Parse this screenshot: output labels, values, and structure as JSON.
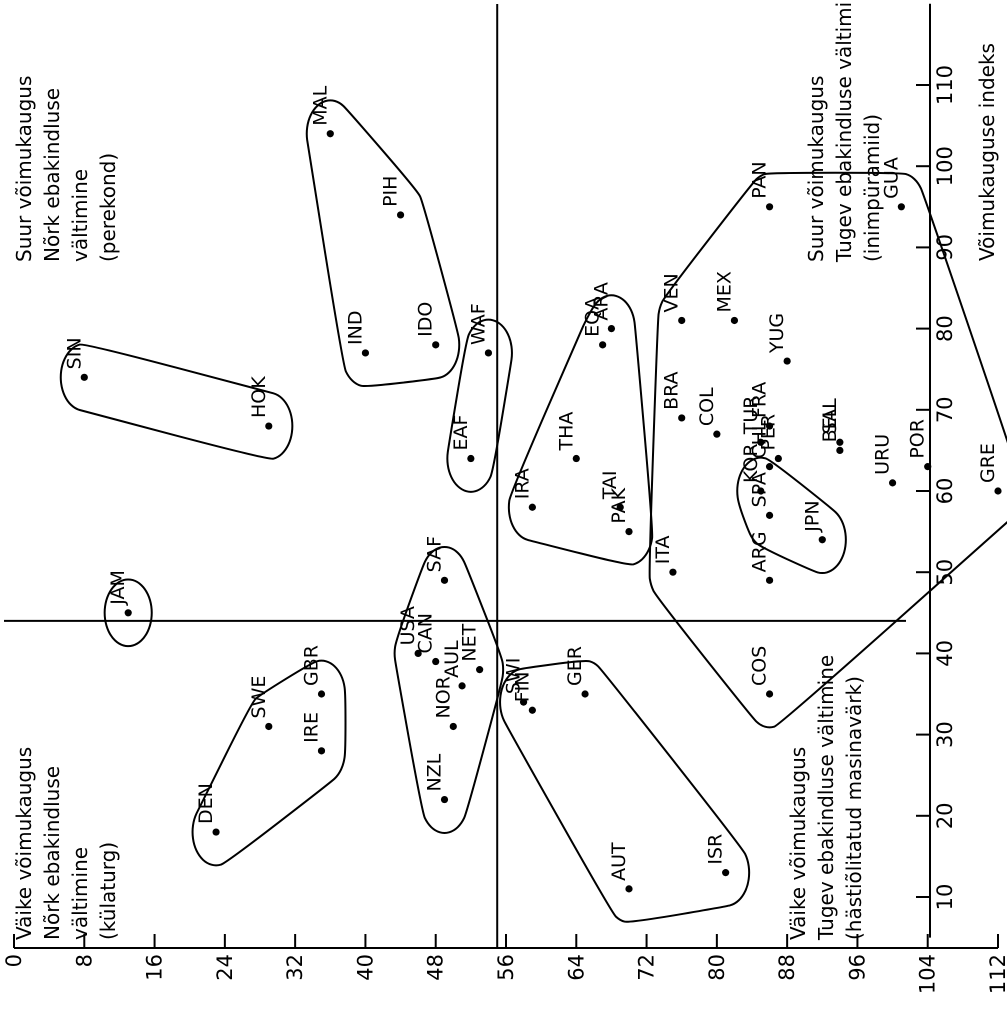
{
  "chart_data": {
    "type": "scatter",
    "x_axis": {
      "label": "Võimukauguse indeks",
      "range": [
        5,
        120
      ],
      "ticks": [
        "10",
        "20",
        "30",
        "40",
        "50",
        "60",
        "70",
        "80",
        "90",
        "100",
        "110"
      ]
    },
    "y_axis": {
      "label": "",
      "range": [
        0,
        112
      ],
      "ticks": [
        "0",
        "8",
        "16",
        "24",
        "32",
        "40",
        "48",
        "56",
        "64",
        "72",
        "80",
        "88",
        "96",
        "104",
        "112"
      ]
    },
    "dividers": {
      "x": 44,
      "y": 55
    },
    "quadrant_labels": [
      {
        "lines": [
          "Väike võimukaugus",
          "Nõrk ebakindluse",
          "vältimine",
          "(külaturg)"
        ]
      },
      {
        "lines": [
          "Suur võimukaugus",
          "Nõrk ebakindluse",
          "vältimine",
          "(perekond)"
        ]
      },
      {
        "lines": [
          "Väike võimukaugus",
          "Tugev ebakindluse vältimine",
          "(hästiõlitatud masinavärk)"
        ]
      },
      {
        "lines": [
          "Suur võimukaugus",
          "Tugev ebakindluse vältimine",
          "(inimpüramiid)"
        ]
      }
    ],
    "points": [
      {
        "label": "DEN",
        "x": 18,
        "y": 23
      },
      {
        "label": "SWE",
        "x": 31,
        "y": 29
      },
      {
        "label": "IRE",
        "x": 28,
        "y": 35
      },
      {
        "label": "GBR",
        "x": 35,
        "y": 35
      },
      {
        "label": "JAM",
        "x": 45,
        "y": 13
      },
      {
        "label": "SIN",
        "x": 74,
        "y": 8
      },
      {
        "label": "HOK",
        "x": 68,
        "y": 29
      },
      {
        "label": "NZL",
        "x": 22,
        "y": 49
      },
      {
        "label": "NOR",
        "x": 31,
        "y": 50
      },
      {
        "label": "AUL",
        "x": 36,
        "y": 51
      },
      {
        "label": "USA",
        "x": 40,
        "y": 46
      },
      {
        "label": "CAN",
        "x": 39,
        "y": 48
      },
      {
        "label": "NET",
        "x": 38,
        "y": 53
      },
      {
        "label": "SAF",
        "x": 49,
        "y": 49
      },
      {
        "label": "AUT",
        "x": 11,
        "y": 70
      },
      {
        "label": "ISR",
        "x": 13,
        "y": 81
      },
      {
        "label": "SWI",
        "x": 34,
        "y": 58
      },
      {
        "label": "FIN",
        "x": 33,
        "y": 59
      },
      {
        "label": "GER",
        "x": 35,
        "y": 65
      },
      {
        "label": "COS",
        "x": 35,
        "y": 86
      },
      {
        "label": "EAF",
        "x": 64,
        "y": 52
      },
      {
        "label": "WAF",
        "x": 77,
        "y": 54
      },
      {
        "label": "IND",
        "x": 77,
        "y": 40
      },
      {
        "label": "IDO",
        "x": 78,
        "y": 48
      },
      {
        "label": "PIH",
        "x": 94,
        "y": 44
      },
      {
        "label": "MAL",
        "x": 104,
        "y": 36
      },
      {
        "label": "IRA",
        "x": 58,
        "y": 59
      },
      {
        "label": "THA",
        "x": 64,
        "y": 64
      },
      {
        "label": "PAK",
        "x": 55,
        "y": 70
      },
      {
        "label": "TAI",
        "x": 58,
        "y": 69
      },
      {
        "label": "EQA",
        "x": 78,
        "y": 67
      },
      {
        "label": "ARA",
        "x": 80,
        "y": 68
      },
      {
        "label": "ITA",
        "x": 50,
        "y": 75
      },
      {
        "label": "BRA",
        "x": 69,
        "y": 76
      },
      {
        "label": "VEN",
        "x": 81,
        "y": 76
      },
      {
        "label": "COL",
        "x": 67,
        "y": 80
      },
      {
        "label": "TUR",
        "x": 66,
        "y": 85
      },
      {
        "label": "FRA",
        "x": 68,
        "y": 86
      },
      {
        "label": "MEX",
        "x": 81,
        "y": 82
      },
      {
        "label": "YUG",
        "x": 76,
        "y": 88
      },
      {
        "label": "PAN",
        "x": 95,
        "y": 86
      },
      {
        "label": "PER",
        "x": 64,
        "y": 87
      },
      {
        "label": "CHL",
        "x": 63,
        "y": 86
      },
      {
        "label": "SAL",
        "x": 66,
        "y": 94
      },
      {
        "label": "BEL",
        "x": 65,
        "y": 94
      },
      {
        "label": "KOR",
        "x": 60,
        "y": 85
      },
      {
        "label": "SPA",
        "x": 57,
        "y": 86
      },
      {
        "label": "ARG",
        "x": 49,
        "y": 86
      },
      {
        "label": "JPN",
        "x": 54,
        "y": 92
      },
      {
        "label": "URU",
        "x": 61,
        "y": 100
      },
      {
        "label": "POR",
        "x": 63,
        "y": 104
      },
      {
        "label": "GRE",
        "x": 60,
        "y": 112
      },
      {
        "label": "GUA",
        "x": 95,
        "y": 101
      }
    ],
    "groups": [
      [
        "DEN",
        "SWE",
        "IRE",
        "GBR"
      ],
      [
        "JAM"
      ],
      [
        "SIN",
        "HOK"
      ],
      [
        "NZL",
        "NOR",
        "AUL",
        "USA",
        "CAN",
        "NET",
        "SAF"
      ],
      [
        "AUT",
        "ISR",
        "SWI",
        "FIN",
        "GER"
      ],
      [
        "EAF",
        "WAF"
      ],
      [
        "IND",
        "IDO",
        "PIH",
        "MAL"
      ],
      [
        "IRA",
        "THA",
        "PAK",
        "TAI",
        "EQA",
        "ARA"
      ],
      [
        "KOR",
        "SPA",
        "JPN"
      ],
      [
        "COS",
        "ITA",
        "ARG",
        "BRA",
        "VEN",
        "COL",
        "TUR",
        "FRA",
        "MEX",
        "YUG",
        "PAN",
        "PER",
        "CHL",
        "SAL",
        "BEL",
        "URU",
        "POR",
        "GRE",
        "GUA"
      ]
    ],
    "grid": false,
    "legend": "none",
    "colors": {
      "ink": "#000000",
      "background": "#ffffff"
    }
  }
}
